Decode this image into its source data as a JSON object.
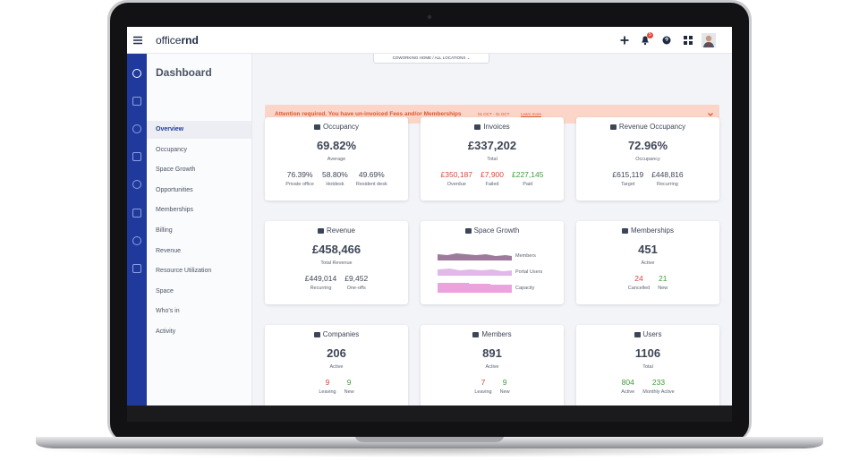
{
  "header": {
    "logo_light": "office",
    "logo_bold": "rnd",
    "notifications": "5"
  },
  "sidebar": {
    "title": "Dashboard",
    "items": [
      "Overview",
      "Occupancy",
      "Space Growth",
      "Opportunities",
      "Memberships",
      "Billing",
      "Revenue",
      "Resource Utilization",
      "Space",
      "Who's in",
      "Activity"
    ],
    "selected": 0
  },
  "location": "COWORKING HOME  /  ALL LOCATIONS",
  "alert": {
    "message": "Attention required. You have un-invoiced Fees and/or Memberships",
    "period": "01 OCT - 31 OCT",
    "link": "Learn more"
  },
  "cards": [
    {
      "title": "Occupancy",
      "value": "69.82%",
      "caption": "Average",
      "stats": [
        {
          "value": "76.39%",
          "label": "Private office"
        },
        {
          "value": "58.80%",
          "label": "Hotdesk"
        },
        {
          "value": "49.69%",
          "label": "Resident desk"
        }
      ]
    },
    {
      "title": "Invoices",
      "value": "£337,202",
      "caption": "Total",
      "stats": [
        {
          "value": "£350,187",
          "label": "Overdue",
          "color": "#d9473b"
        },
        {
          "value": "£7,900",
          "label": "Failed",
          "color": "#d9473b"
        },
        {
          "value": "£227,145",
          "label": "Paid",
          "color": "#3f9a3a"
        }
      ]
    },
    {
      "title": "Revenue Occupancy",
      "value": "72.96%",
      "caption": "Occupancy",
      "stats": [
        {
          "value": "£615,119",
          "label": "Target"
        },
        {
          "value": "£448,816",
          "label": "Recurring"
        }
      ]
    },
    {
      "title": "Revenue",
      "value": "£458,466",
      "caption": "Total Revenue",
      "stats": [
        {
          "value": "£449,014",
          "label": "Recurring"
        },
        {
          "value": "£9,452",
          "label": "One-offs"
        }
      ]
    },
    {
      "title": "Space Growth",
      "legend": [
        "Members",
        "Portal Users",
        "Capacity"
      ]
    },
    {
      "title": "Memberships",
      "value": "451",
      "caption": "Active",
      "stats": [
        {
          "value": "24",
          "label": "Cancelled",
          "color": "#d9473b"
        },
        {
          "value": "21",
          "label": "New",
          "color": "#3f9a3a"
        }
      ]
    },
    {
      "title": "Companies",
      "value": "206",
      "caption": "Active",
      "stats": [
        {
          "value": "9",
          "label": "Leaving",
          "color": "#d9473b"
        },
        {
          "value": "9",
          "label": "New",
          "color": "#3f9a3a"
        }
      ]
    },
    {
      "title": "Members",
      "value": "891",
      "caption": "Active",
      "stats": [
        {
          "value": "7",
          "label": "Leaving",
          "color": "#d9473b"
        },
        {
          "value": "9",
          "label": "New",
          "color": "#3f9a3a"
        }
      ]
    },
    {
      "title": "Users",
      "value": "1106",
      "caption": "Total",
      "stats": [
        {
          "value": "804",
          "label": "Active",
          "color": "#3f9a3a"
        },
        {
          "value": "233",
          "label": "Monthly Active",
          "color": "#3f9a3a"
        }
      ]
    }
  ]
}
